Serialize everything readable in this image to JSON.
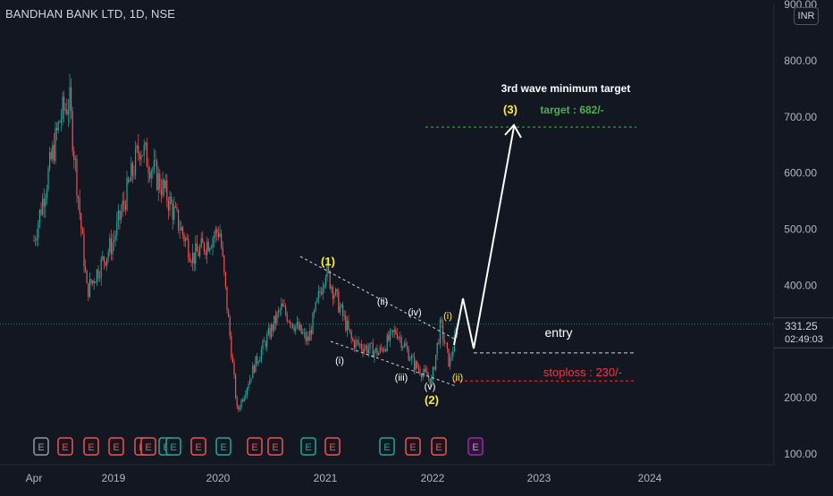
{
  "header": {
    "title": "BANDHAN BANK LTD, 1D, NSE",
    "currency": "INR"
  },
  "price_axis": {
    "labels": [
      "900.00",
      "800.00",
      "700.00",
      "600.00",
      "500.00",
      "400.00",
      "200.00",
      "100.00"
    ],
    "current_price": "331.25",
    "countdown": "02:49:03"
  },
  "time_axis": {
    "labels": [
      "Apr",
      "2019",
      "2020",
      "2021",
      "2022",
      "2023",
      "2024"
    ]
  },
  "annotations": {
    "headline": "3rd wave minimum target",
    "target_wave": "(3)",
    "target": "target : 682/-",
    "entry": "entry",
    "stoploss": "stoploss : 230/-",
    "wave_1": "(1)",
    "wave_2": "(2)",
    "sub_i": "(i)",
    "sub_ii": "(ii)",
    "sub_iii": "(iii)",
    "sub_iv": "(iv)",
    "sub_v": "(v)",
    "new_i": "(i)",
    "new_ii": "(ii)"
  },
  "events": {
    "earnings_label": "E",
    "earnings_count": 17
  },
  "colors": {
    "background": "#131722",
    "up": "#26a69a",
    "down": "#ef5350",
    "target_green": "#4caf50",
    "stoploss_red": "#f23645",
    "wave_yellow": "#ffeb3b",
    "earnings_purple": "#9c27b0"
  },
  "chart_data": {
    "type": "line",
    "x": [
      "2018-04",
      "2018-07",
      "2018-08",
      "2018-10",
      "2019-01",
      "2019-04",
      "2019-07",
      "2019-10",
      "2020-01",
      "2020-03",
      "2020-05",
      "2020-08",
      "2020-11",
      "2021-01",
      "2021-04",
      "2021-07",
      "2021-09",
      "2021-11",
      "2022-01",
      "2022-02",
      "2022-03",
      "2022-04"
    ],
    "series": [
      {
        "values": [
          480,
          700,
          730,
          390,
          480,
          650,
          560,
          450,
          500,
          175,
          260,
          360,
          300,
          430,
          300,
          280,
          320,
          260,
          230,
          330,
          260,
          331
        ]
      }
    ],
    "ylim": [
      100,
      900
    ],
    "levels": {
      "entry": 280,
      "stoploss": 230,
      "target": 682
    }
  }
}
